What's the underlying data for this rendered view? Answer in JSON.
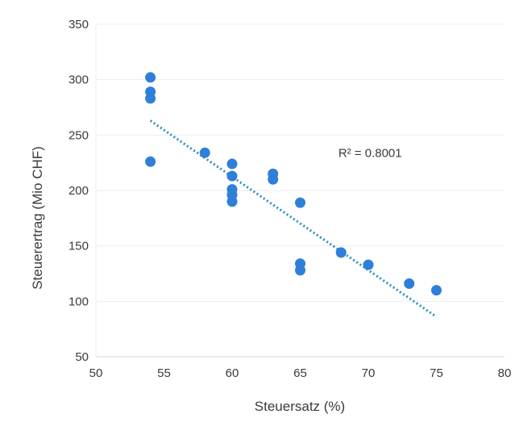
{
  "chart_data": {
    "type": "scatter",
    "title": "",
    "xlabel": "Steuersatz (%)",
    "ylabel": "Steuerertrag (Mio CHF)",
    "xlim": [
      50,
      80
    ],
    "ylim": [
      50,
      350
    ],
    "xticks": [
      50,
      55,
      60,
      65,
      70,
      75,
      80
    ],
    "yticks": [
      50,
      100,
      150,
      200,
      250,
      300,
      350
    ],
    "grid": "horizontal",
    "point_color": "#2e7fd8",
    "trendline_color": "#2a8fc4",
    "series": [
      {
        "points": [
          {
            "x": 54,
            "y": 302
          },
          {
            "x": 54,
            "y": 289
          },
          {
            "x": 54,
            "y": 283
          },
          {
            "x": 54,
            "y": 226
          },
          {
            "x": 58,
            "y": 234
          },
          {
            "x": 60,
            "y": 224
          },
          {
            "x": 60,
            "y": 213
          },
          {
            "x": 60,
            "y": 201
          },
          {
            "x": 60,
            "y": 196
          },
          {
            "x": 60,
            "y": 190
          },
          {
            "x": 63,
            "y": 215
          },
          {
            "x": 63,
            "y": 210
          },
          {
            "x": 65,
            "y": 189
          },
          {
            "x": 65,
            "y": 134
          },
          {
            "x": 65,
            "y": 128
          },
          {
            "x": 68,
            "y": 144
          },
          {
            "x": 70,
            "y": 133
          },
          {
            "x": 73,
            "y": 116
          },
          {
            "x": 75,
            "y": 110
          }
        ]
      }
    ],
    "trendline": {
      "type": "linear",
      "x": [
        54,
        75
      ],
      "y": [
        263,
        86
      ],
      "style": "dotted"
    },
    "annotations": [
      {
        "text": "R² = 0.8001",
        "x": 67.8,
        "y": 234
      }
    ]
  }
}
